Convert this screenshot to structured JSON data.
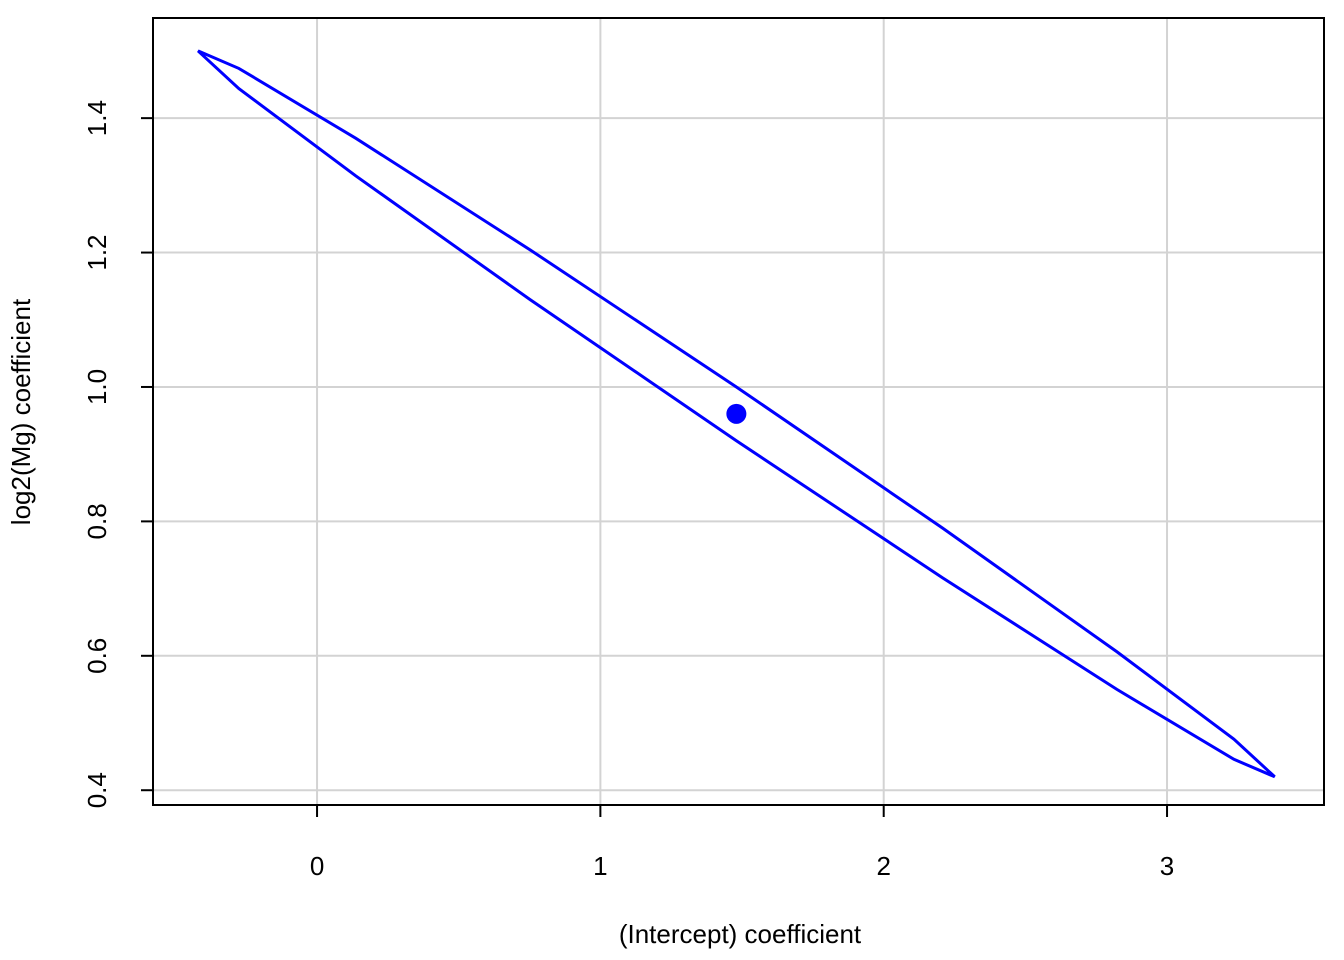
{
  "chart_data": {
    "type": "line",
    "xlabel": "(Intercept) coefficient",
    "ylabel": "log2(Mg) coefficient",
    "xlim": [
      -0.579,
      3.554
    ],
    "ylim": [
      0.378,
      1.549
    ],
    "xticks": [
      0,
      1,
      2,
      3
    ],
    "yticks": [
      0.4,
      0.6,
      0.8,
      {
        "value": 1,
        "label": "1.0"
      },
      1.2,
      1.4
    ],
    "grid": true,
    "ellipse": {
      "color": "#0000ff",
      "x": [
        3.38,
        3.236,
        2.823,
        2.208,
        1.48,
        0.752,
        0.137,
        -0.276,
        -0.42,
        -0.276,
        0.137,
        0.752,
        1.48,
        2.208,
        2.823,
        3.236
      ],
      "y": [
        0.42,
        0.476,
        0.606,
        0.79,
        1.0,
        1.204,
        1.37,
        1.474,
        1.5,
        1.444,
        1.314,
        1.13,
        0.92,
        0.716,
        0.55,
        0.446
      ]
    },
    "center": {
      "color": "#0000ff",
      "x": 1.48,
      "y": 0.96
    }
  }
}
